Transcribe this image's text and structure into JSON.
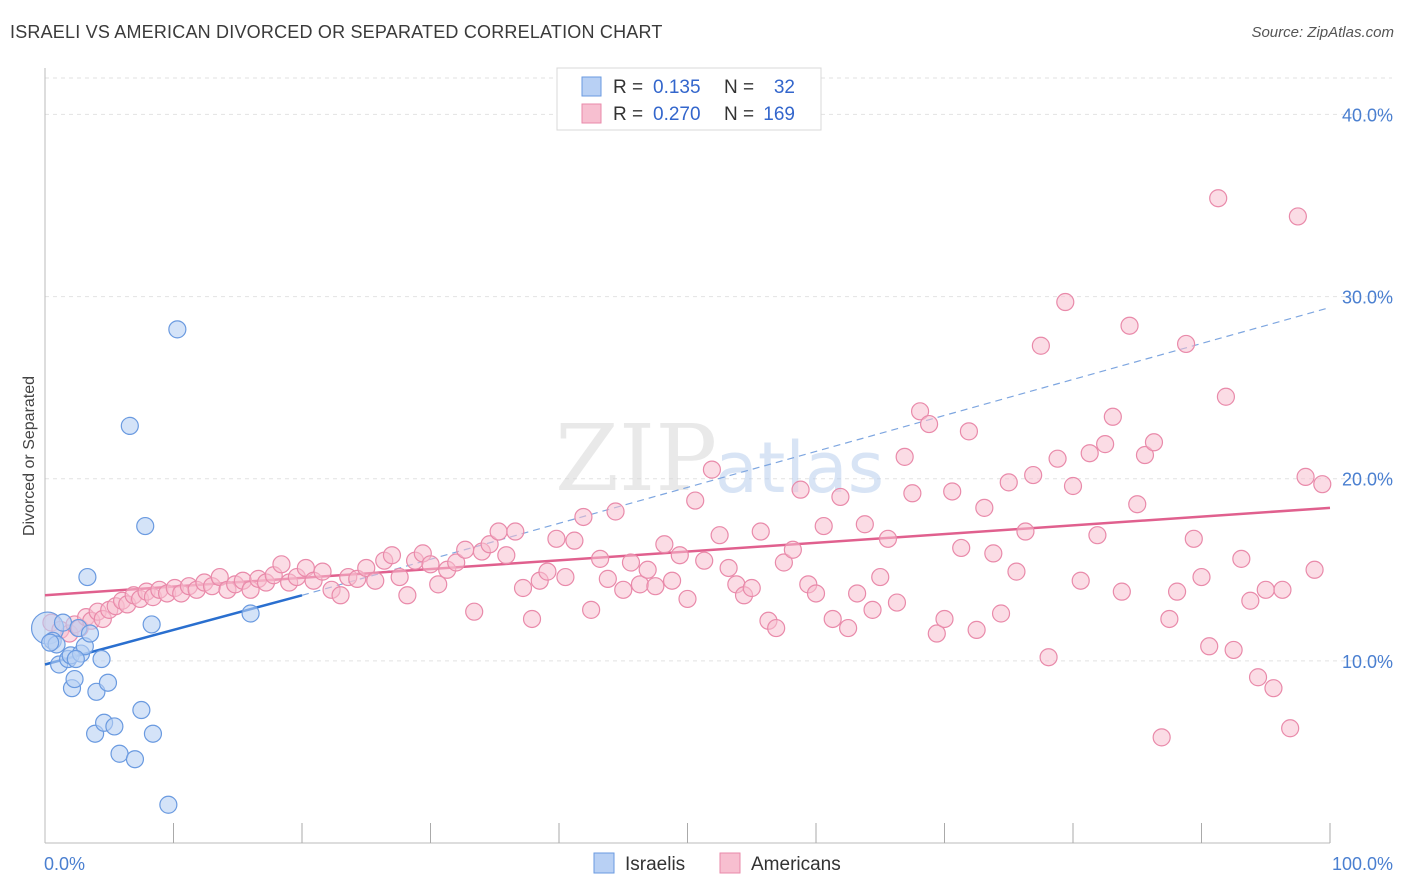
{
  "header": {
    "title": "ISRAELI VS AMERICAN DIVORCED OR SEPARATED CORRELATION CHART",
    "source": "Source: ZipAtlas.com"
  },
  "watermark": {
    "zip": "ZIP",
    "atlas": "atlas"
  },
  "chart_data": {
    "type": "scatter",
    "title": "ISRAELI VS AMERICAN DIVORCED OR SEPARATED CORRELATION CHART",
    "ylabel": "Divorced or Separated",
    "xlabel": "",
    "xlim": [
      0,
      100
    ],
    "ylim": [
      0,
      40
    ],
    "y_ticks": [
      10,
      20,
      30,
      40
    ],
    "y_tick_labels": [
      "10.0%",
      "20.0%",
      "30.0%",
      "40.0%"
    ],
    "x_tick_labels": [
      "0.0%",
      "100.0%"
    ],
    "grid": true,
    "legend_position": "top-center",
    "colors": {
      "israelis_fill": "#b8d0f4",
      "israelis_stroke": "#6a9ae0",
      "israelis_line": "#2a6fcf",
      "americans_fill": "#f7bfd0",
      "americans_stroke": "#e98aaa",
      "americans_line": "#e0608e"
    },
    "legend": [
      {
        "r_label": "R =",
        "r_value": "0.135",
        "n_label": "N =",
        "n_value": "32"
      },
      {
        "r_label": "R =",
        "r_value": "0.270",
        "n_label": "N =",
        "n_value": "169"
      }
    ],
    "series": [
      {
        "name": "Israelis",
        "r": 0.135,
        "n": 32,
        "trend": {
          "x": [
            0,
            20
          ],
          "y": [
            9.8,
            13.6
          ]
        },
        "trend_extended": {
          "x": [
            20,
            100
          ],
          "y": [
            13.6,
            29.4
          ]
        },
        "points": [
          [
            0.2,
            11.8
          ],
          [
            0.6,
            11.1
          ],
          [
            0.9,
            10.9
          ],
          [
            1.1,
            9.8
          ],
          [
            1.4,
            12.1
          ],
          [
            1.8,
            10.1
          ],
          [
            2.0,
            10.3
          ],
          [
            2.1,
            8.5
          ],
          [
            2.3,
            9.0
          ],
          [
            2.6,
            11.8
          ],
          [
            2.8,
            10.4
          ],
          [
            3.1,
            10.8
          ],
          [
            3.3,
            14.6
          ],
          [
            3.5,
            11.5
          ],
          [
            3.9,
            6.0
          ],
          [
            4.0,
            8.3
          ],
          [
            4.4,
            10.1
          ],
          [
            4.6,
            6.6
          ],
          [
            4.9,
            8.8
          ],
          [
            5.4,
            6.4
          ],
          [
            5.8,
            4.9
          ],
          [
            6.6,
            22.9
          ],
          [
            7.0,
            4.6
          ],
          [
            7.5,
            7.3
          ],
          [
            7.8,
            17.4
          ],
          [
            8.3,
            12.0
          ],
          [
            8.4,
            6.0
          ],
          [
            9.6,
            2.1
          ],
          [
            10.3,
            28.2
          ],
          [
            16.0,
            12.6
          ],
          [
            2.4,
            10.1
          ],
          [
            0.4,
            11.0
          ]
        ]
      },
      {
        "name": "Americans",
        "r": 0.27,
        "n": 169,
        "trend": {
          "x": [
            0,
            100
          ],
          "y": [
            13.6,
            18.4
          ]
        },
        "points": [
          [
            0.5,
            12.1
          ],
          [
            1.2,
            11.7
          ],
          [
            1.9,
            11.5
          ],
          [
            2.3,
            12.0
          ],
          [
            2.7,
            11.8
          ],
          [
            3.2,
            12.4
          ],
          [
            3.6,
            12.2
          ],
          [
            4.1,
            12.7
          ],
          [
            4.5,
            12.3
          ],
          [
            5.0,
            12.8
          ],
          [
            5.5,
            13.0
          ],
          [
            6.0,
            13.3
          ],
          [
            6.4,
            13.1
          ],
          [
            6.9,
            13.6
          ],
          [
            7.4,
            13.4
          ],
          [
            7.9,
            13.8
          ],
          [
            8.4,
            13.5
          ],
          [
            8.9,
            13.9
          ],
          [
            9.5,
            13.7
          ],
          [
            10.1,
            14.0
          ],
          [
            10.6,
            13.7
          ],
          [
            11.2,
            14.1
          ],
          [
            11.8,
            13.9
          ],
          [
            12.4,
            14.3
          ],
          [
            13.0,
            14.1
          ],
          [
            13.6,
            14.6
          ],
          [
            14.2,
            13.9
          ],
          [
            14.8,
            14.2
          ],
          [
            15.4,
            14.4
          ],
          [
            16.0,
            13.9
          ],
          [
            16.6,
            14.5
          ],
          [
            17.2,
            14.3
          ],
          [
            17.8,
            14.7
          ],
          [
            18.4,
            15.3
          ],
          [
            19.0,
            14.3
          ],
          [
            19.6,
            14.6
          ],
          [
            20.3,
            15.1
          ],
          [
            20.9,
            14.4
          ],
          [
            21.6,
            14.9
          ],
          [
            22.3,
            13.9
          ],
          [
            23.0,
            13.6
          ],
          [
            23.6,
            14.6
          ],
          [
            24.3,
            14.5
          ],
          [
            25.0,
            15.1
          ],
          [
            25.7,
            14.4
          ],
          [
            26.4,
            15.5
          ],
          [
            27.0,
            15.8
          ],
          [
            27.6,
            14.6
          ],
          [
            28.2,
            13.6
          ],
          [
            28.8,
            15.5
          ],
          [
            29.4,
            15.9
          ],
          [
            30.0,
            15.3
          ],
          [
            30.6,
            14.2
          ],
          [
            31.3,
            15.0
          ],
          [
            32.0,
            15.4
          ],
          [
            32.7,
            16.1
          ],
          [
            33.4,
            12.7
          ],
          [
            34.0,
            16.0
          ],
          [
            34.6,
            16.4
          ],
          [
            35.3,
            17.1
          ],
          [
            35.9,
            15.8
          ],
          [
            36.6,
            17.1
          ],
          [
            37.2,
            14.0
          ],
          [
            37.9,
            12.3
          ],
          [
            38.5,
            14.4
          ],
          [
            39.1,
            14.9
          ],
          [
            39.8,
            16.7
          ],
          [
            40.5,
            14.6
          ],
          [
            41.2,
            16.6
          ],
          [
            41.9,
            17.9
          ],
          [
            42.5,
            12.8
          ],
          [
            43.2,
            15.6
          ],
          [
            43.8,
            14.5
          ],
          [
            44.4,
            18.2
          ],
          [
            45.0,
            13.9
          ],
          [
            45.6,
            15.4
          ],
          [
            46.3,
            14.2
          ],
          [
            46.9,
            15.0
          ],
          [
            47.5,
            14.1
          ],
          [
            48.2,
            16.4
          ],
          [
            48.8,
            14.4
          ],
          [
            49.4,
            15.8
          ],
          [
            50.0,
            13.4
          ],
          [
            50.6,
            18.8
          ],
          [
            51.3,
            15.5
          ],
          [
            51.9,
            20.5
          ],
          [
            52.5,
            16.9
          ],
          [
            53.2,
            15.1
          ],
          [
            53.8,
            14.2
          ],
          [
            54.4,
            13.6
          ],
          [
            55.0,
            14.0
          ],
          [
            55.7,
            17.1
          ],
          [
            56.3,
            12.2
          ],
          [
            56.9,
            11.8
          ],
          [
            57.5,
            15.4
          ],
          [
            58.2,
            16.1
          ],
          [
            58.8,
            19.4
          ],
          [
            59.4,
            14.2
          ],
          [
            60.0,
            13.7
          ],
          [
            60.6,
            17.4
          ],
          [
            61.3,
            12.3
          ],
          [
            61.9,
            19.0
          ],
          [
            62.5,
            11.8
          ],
          [
            63.2,
            13.7
          ],
          [
            63.8,
            17.5
          ],
          [
            64.4,
            12.8
          ],
          [
            65.0,
            14.6
          ],
          [
            65.6,
            16.7
          ],
          [
            66.3,
            13.2
          ],
          [
            66.9,
            21.2
          ],
          [
            67.5,
            19.2
          ],
          [
            68.1,
            23.7
          ],
          [
            68.8,
            23.0
          ],
          [
            69.4,
            11.5
          ],
          [
            70.0,
            12.3
          ],
          [
            70.6,
            19.3
          ],
          [
            71.3,
            16.2
          ],
          [
            71.9,
            22.6
          ],
          [
            72.5,
            11.7
          ],
          [
            73.1,
            18.4
          ],
          [
            73.8,
            15.9
          ],
          [
            74.4,
            12.6
          ],
          [
            75.0,
            19.8
          ],
          [
            75.6,
            14.9
          ],
          [
            76.3,
            17.1
          ],
          [
            76.9,
            20.2
          ],
          [
            77.5,
            27.3
          ],
          [
            78.1,
            10.2
          ],
          [
            78.8,
            21.1
          ],
          [
            79.4,
            29.7
          ],
          [
            80.0,
            19.6
          ],
          [
            80.6,
            14.4
          ],
          [
            81.3,
            21.4
          ],
          [
            81.9,
            16.9
          ],
          [
            82.5,
            21.9
          ],
          [
            83.1,
            23.4
          ],
          [
            83.8,
            13.8
          ],
          [
            84.4,
            28.4
          ],
          [
            85.0,
            18.6
          ],
          [
            85.6,
            21.3
          ],
          [
            86.3,
            22.0
          ],
          [
            86.9,
            5.8
          ],
          [
            87.5,
            12.3
          ],
          [
            88.1,
            13.8
          ],
          [
            88.8,
            27.4
          ],
          [
            89.4,
            16.7
          ],
          [
            90.0,
            14.6
          ],
          [
            90.6,
            10.8
          ],
          [
            91.3,
            35.4
          ],
          [
            91.9,
            24.5
          ],
          [
            92.5,
            10.6
          ],
          [
            93.1,
            15.6
          ],
          [
            93.8,
            13.3
          ],
          [
            94.4,
            9.1
          ],
          [
            95.0,
            13.9
          ],
          [
            95.6,
            8.5
          ],
          [
            96.3,
            13.9
          ],
          [
            96.9,
            6.3
          ],
          [
            97.5,
            34.4
          ],
          [
            98.1,
            20.1
          ],
          [
            98.8,
            15.0
          ],
          [
            99.4,
            19.7
          ]
        ]
      }
    ]
  },
  "bottom_legend": [
    {
      "label": "Israelis"
    },
    {
      "label": "Americans"
    }
  ]
}
